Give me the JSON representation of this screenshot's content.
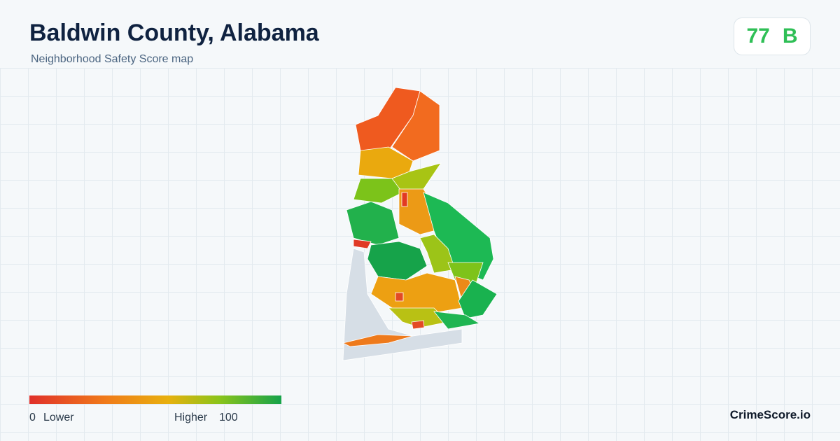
{
  "header": {
    "title": "Baldwin County, Alabama",
    "subtitle": "Neighborhood Safety Score map"
  },
  "score": {
    "value": "77",
    "grade": "B"
  },
  "legend": {
    "min": "0",
    "low_label": "Lower",
    "high_label": "Higher",
    "max": "100"
  },
  "brand": "CrimeScore.io"
}
